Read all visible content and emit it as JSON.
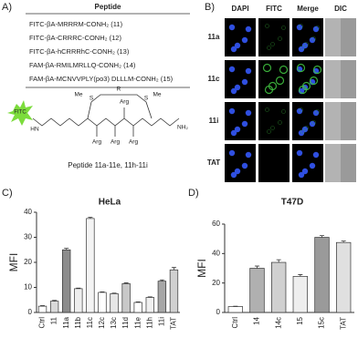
{
  "panel_labels": [
    "A)",
    "B)",
    "C)",
    "D)"
  ],
  "peptide_table": {
    "header": "Peptide",
    "rows": [
      "FITC-βA-MRRRM-CONH₂ (11)",
      "FITC-βA-CRRRC-CONH₂ (12)",
      "FITC-βA-hCRRRhC-CONH₂ (13)",
      "FAM-βA-RMILMRLLQ-CONH₂ (14)",
      "FAM-βA-MCNVVPLY(po3) DLLLM-CONH₂ (15)"
    ]
  },
  "structure_labels": [
    "FITC",
    "HN",
    "S",
    "R",
    "S",
    "Me",
    "Me",
    "Arg",
    "Arg",
    "Arg",
    "Arg",
    "NH₂"
  ],
  "structure_caption": "Peptide 11a-11e, 11h-11i",
  "microscopy": {
    "columns": [
      "DAPI",
      "FITC",
      "Merge",
      "DIC"
    ],
    "rows": [
      "11a",
      "11c",
      "11i",
      "TAT"
    ]
  },
  "chart_data": [
    {
      "type": "bar",
      "title": "HeLa",
      "y_label": "MFI",
      "categories": [
        "Ctrl",
        "11",
        "11a",
        "11b",
        "11c",
        "12c",
        "13c",
        "11d",
        "11e",
        "11h",
        "11i",
        "TAT"
      ],
      "values": [
        2.5,
        4.5,
        25,
        9.5,
        37.5,
        8,
        7.5,
        11.5,
        4,
        6,
        12.5,
        17
      ],
      "errors": [
        0.2,
        0.3,
        0.6,
        0.2,
        0.5,
        0.2,
        0.2,
        0.3,
        0.2,
        0.2,
        0.5,
        1
      ],
      "colors": [
        "#ffffff",
        "#d9d9d9",
        "#8c8c8c",
        "#eeeeee",
        "#f4f4f4",
        "#ffffff",
        "#e6e6e6",
        "#c8c8c8",
        "#ffffff",
        "#f0f0f0",
        "#a6a6a6",
        "#d0d0d0"
      ],
      "ylim": [
        0,
        40
      ],
      "yticks": [
        0,
        10,
        20,
        30,
        40
      ]
    },
    {
      "type": "bar",
      "title": "T47D",
      "y_label": "MFI",
      "categories": [
        "Ctrl",
        "14",
        "14c",
        "15",
        "15c",
        "TAT"
      ],
      "values": [
        4,
        30,
        34,
        24.5,
        51,
        47.5
      ],
      "errors": [
        0.2,
        1.5,
        1.8,
        1.2,
        1.2,
        1
      ],
      "colors": [
        "#ffffff",
        "#b0b0b0",
        "#d0d0d0",
        "#eeeeee",
        "#9a9a9a",
        "#e0e0e0"
      ],
      "ylim": [
        0,
        60
      ],
      "yticks": [
        0,
        20,
        40,
        60
      ]
    }
  ]
}
